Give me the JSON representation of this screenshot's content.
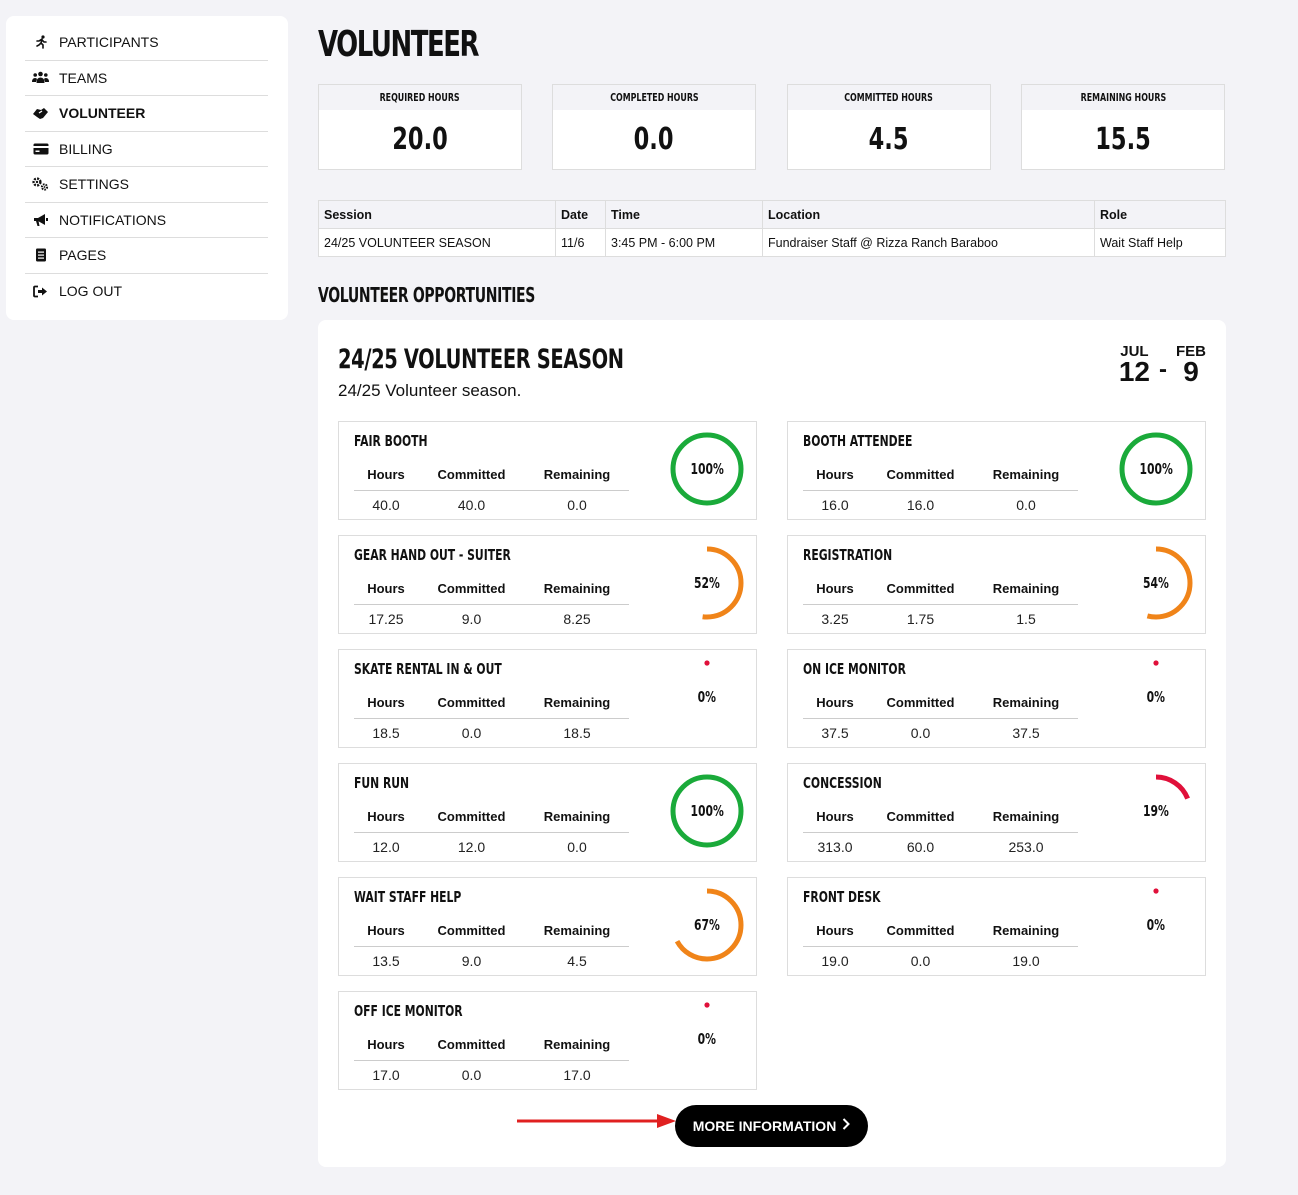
{
  "sidebar": {
    "items": [
      {
        "label": "PARTICIPANTS",
        "icon": "running-icon",
        "active": false
      },
      {
        "label": "TEAMS",
        "icon": "users-icon",
        "active": false
      },
      {
        "label": "VOLUNTEER",
        "icon": "handshake-icon",
        "active": true
      },
      {
        "label": "BILLING",
        "icon": "credit-card-icon",
        "active": false
      },
      {
        "label": "SETTINGS",
        "icon": "gears-icon",
        "active": false
      },
      {
        "label": "NOTIFICATIONS",
        "icon": "megaphone-icon",
        "active": false
      },
      {
        "label": "PAGES",
        "icon": "document-icon",
        "active": false
      },
      {
        "label": "LOG OUT",
        "icon": "logout-icon",
        "active": false
      }
    ]
  },
  "page": {
    "title": "VOLUNTEER"
  },
  "stats": [
    {
      "label": "REQUIRED HOURS",
      "value": "20.0"
    },
    {
      "label": "COMPLETED HOURS",
      "value": "0.0"
    },
    {
      "label": "COMMITTED HOURS",
      "value": "4.5"
    },
    {
      "label": "REMAINING HOURS",
      "value": "15.5"
    }
  ],
  "sessions": {
    "headers": [
      "Session",
      "Date",
      "Time",
      "Location",
      "Role"
    ],
    "rows": [
      [
        "24/25 VOLUNTEER SEASON",
        "11/6",
        "3:45 PM - 6:00 PM",
        "Fundraiser Staff @ Rizza Ranch Baraboo",
        "Wait Staff Help"
      ]
    ]
  },
  "opportunities": {
    "section_title": "VOLUNTEER OPPORTUNITIES",
    "season": {
      "title": "24/25 VOLUNTEER SEASON",
      "description": "24/25 Volunteer season.",
      "start_month": "JUL",
      "start_day": "12",
      "end_month": "FEB",
      "end_day": "9",
      "separator": "-"
    },
    "column_labels": {
      "hours": "Hours",
      "committed": "Committed",
      "remaining": "Remaining"
    },
    "roles": [
      {
        "name": "FAIR BOOTH",
        "hours": "40.0",
        "committed": "40.0",
        "remaining": "0.0",
        "percent_label": "100%",
        "percent": 100
      },
      {
        "name": "BOOTH ATTENDEE",
        "hours": "16.0",
        "committed": "16.0",
        "remaining": "0.0",
        "percent_label": "100%",
        "percent": 100
      },
      {
        "name": "GEAR HAND OUT - SUITER",
        "hours": "17.25",
        "committed": "9.0",
        "remaining": "8.25",
        "percent_label": "52%",
        "percent": 52
      },
      {
        "name": "REGISTRATION",
        "hours": "3.25",
        "committed": "1.75",
        "remaining": "1.5",
        "percent_label": "54%",
        "percent": 54
      },
      {
        "name": "SKATE RENTAL IN & OUT",
        "hours": "18.5",
        "committed": "0.0",
        "remaining": "18.5",
        "percent_label": "0%",
        "percent": 0
      },
      {
        "name": "ON ICE MONITOR",
        "hours": "37.5",
        "committed": "0.0",
        "remaining": "37.5",
        "percent_label": "0%",
        "percent": 0
      },
      {
        "name": "FUN RUN",
        "hours": "12.0",
        "committed": "12.0",
        "remaining": "0.0",
        "percent_label": "100%",
        "percent": 100
      },
      {
        "name": "CONCESSION",
        "hours": "313.0",
        "committed": "60.0",
        "remaining": "253.0",
        "percent_label": "19%",
        "percent": 19
      },
      {
        "name": "WAIT STAFF HELP",
        "hours": "13.5",
        "committed": "9.0",
        "remaining": "4.5",
        "percent_label": "67%",
        "percent": 67
      },
      {
        "name": "FRONT DESK",
        "hours": "19.0",
        "committed": "0.0",
        "remaining": "19.0",
        "percent_label": "0%",
        "percent": 0
      },
      {
        "name": "OFF ICE MONITOR",
        "hours": "17.0",
        "committed": "0.0",
        "remaining": "17.0",
        "percent_label": "0%",
        "percent": 0
      }
    ],
    "more_button": "MORE INFORMATION"
  },
  "colors": {
    "complete": "#1aaa3a",
    "partial": "#f08419",
    "low": "#e0103a",
    "arrow": "#e02020"
  }
}
